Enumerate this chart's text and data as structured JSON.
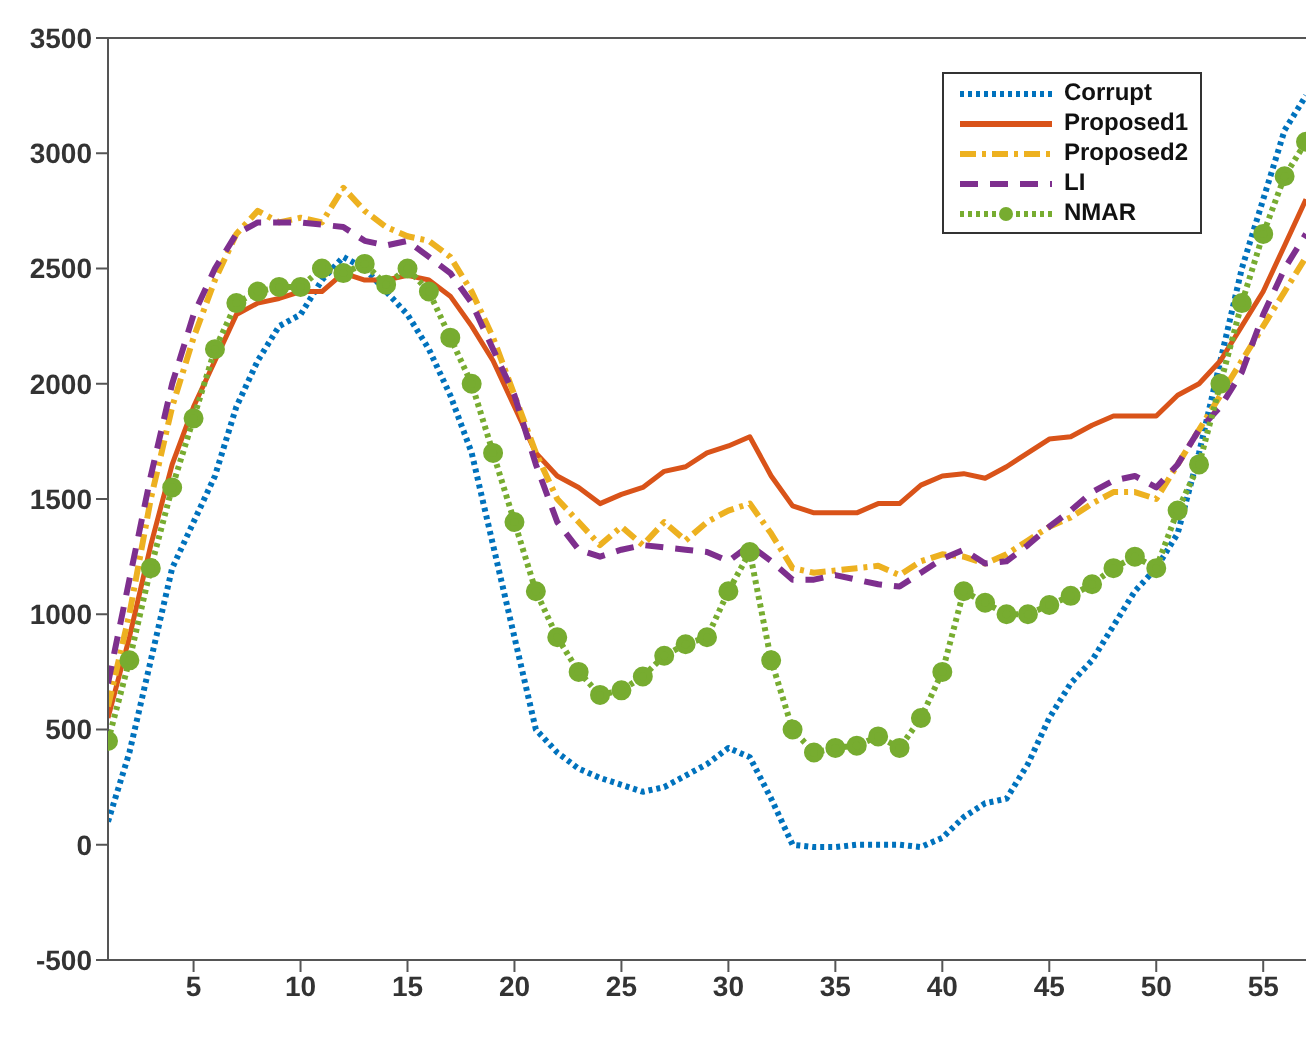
{
  "chart_data": {
    "type": "line",
    "x": [
      1,
      2,
      3,
      4,
      5,
      6,
      7,
      8,
      9,
      10,
      11,
      12,
      13,
      14,
      15,
      16,
      17,
      18,
      19,
      20,
      21,
      22,
      23,
      24,
      25,
      26,
      27,
      28,
      29,
      30,
      31,
      32,
      33,
      34,
      35,
      36,
      37,
      38,
      39,
      40,
      41,
      42,
      43,
      44,
      45,
      46,
      47,
      48,
      49,
      50,
      51,
      52,
      53,
      54,
      55,
      56,
      57
    ],
    "series": [
      {
        "name": "Corrupt",
        "color": "#0072bd",
        "line_style": "dotted",
        "values": [
          100,
          400,
          800,
          1200,
          1400,
          1600,
          1900,
          2100,
          2250,
          2300,
          2450,
          2550,
          2500,
          2400,
          2300,
          2150,
          1950,
          1700,
          1300,
          900,
          500,
          400,
          330,
          290,
          260,
          230,
          250,
          300,
          350,
          420,
          380,
          200,
          0,
          -10,
          -10,
          0,
          0,
          0,
          -10,
          30,
          120,
          180,
          200,
          350,
          550,
          700,
          800,
          950,
          1100,
          1200,
          1350,
          1700,
          2100,
          2500,
          2800,
          3100,
          3250
        ]
      },
      {
        "name": "Proposed1",
        "color": "#d95319",
        "line_style": "solid",
        "values": [
          550,
          900,
          1300,
          1650,
          1900,
          2100,
          2300,
          2350,
          2370,
          2400,
          2400,
          2480,
          2450,
          2450,
          2470,
          2450,
          2380,
          2250,
          2100,
          1900,
          1700,
          1600,
          1550,
          1480,
          1520,
          1550,
          1620,
          1640,
          1700,
          1730,
          1770,
          1600,
          1470,
          1440,
          1440,
          1440,
          1480,
          1480,
          1560,
          1600,
          1610,
          1590,
          1640,
          1700,
          1760,
          1770,
          1820,
          1860,
          1860,
          1860,
          1950,
          2000,
          2100,
          2250,
          2400,
          2600,
          2800
        ]
      },
      {
        "name": "Proposed2",
        "color": "#edb120",
        "line_style": "dashdot",
        "values": [
          600,
          1000,
          1500,
          1900,
          2200,
          2450,
          2650,
          2750,
          2700,
          2720,
          2700,
          2850,
          2750,
          2680,
          2640,
          2620,
          2550,
          2400,
          2200,
          1950,
          1700,
          1500,
          1400,
          1300,
          1380,
          1300,
          1400,
          1320,
          1400,
          1450,
          1480,
          1350,
          1200,
          1180,
          1190,
          1200,
          1210,
          1170,
          1230,
          1260,
          1250,
          1220,
          1260,
          1320,
          1380,
          1420,
          1480,
          1530,
          1530,
          1500,
          1650,
          1800,
          1950,
          2100,
          2250,
          2400,
          2550
        ]
      },
      {
        "name": "LI",
        "color": "#7e2f8e",
        "line_style": "dashed",
        "values": [
          700,
          1150,
          1600,
          2000,
          2300,
          2500,
          2650,
          2700,
          2700,
          2700,
          2690,
          2680,
          2620,
          2600,
          2620,
          2550,
          2480,
          2350,
          2150,
          1950,
          1650,
          1400,
          1280,
          1250,
          1280,
          1300,
          1290,
          1280,
          1270,
          1230,
          1300,
          1230,
          1150,
          1150,
          1170,
          1150,
          1130,
          1120,
          1180,
          1240,
          1280,
          1220,
          1230,
          1300,
          1380,
          1450,
          1530,
          1580,
          1600,
          1550,
          1650,
          1800,
          1900,
          2050,
          2300,
          2500,
          2650
        ]
      },
      {
        "name": "NMAR",
        "color": "#77ac30",
        "line_style": "dotted",
        "marker": "circle",
        "values": [
          450,
          800,
          1200,
          1550,
          1850,
          2150,
          2350,
          2400,
          2420,
          2420,
          2500,
          2480,
          2520,
          2430,
          2500,
          2400,
          2200,
          2000,
          1700,
          1400,
          1100,
          900,
          750,
          650,
          670,
          730,
          820,
          870,
          900,
          1100,
          1270,
          800,
          500,
          400,
          420,
          430,
          470,
          420,
          550,
          750,
          1100,
          1050,
          1000,
          1000,
          1040,
          1080,
          1130,
          1200,
          1250,
          1200,
          1450,
          1650,
          2000,
          2350,
          2650,
          2900,
          3050
        ]
      }
    ],
    "xlim": [
      1,
      57
    ],
    "xticks": [
      5,
      10,
      15,
      20,
      25,
      30,
      35,
      40,
      45,
      50,
      55
    ],
    "ylim": [
      -500,
      3500
    ],
    "yticks": [
      -500,
      0,
      500,
      1000,
      1500,
      2000,
      2500,
      3000,
      3500
    ],
    "grid": false,
    "legend": "top right"
  }
}
